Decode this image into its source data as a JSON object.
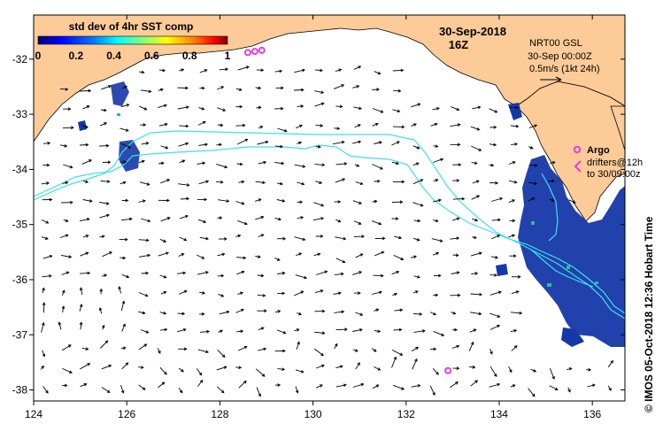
{
  "map": {
    "date": "30-Sep-2018",
    "hour": "16Z",
    "colorbar": {
      "title": "std dev of 4hr SST comp",
      "ticks": [
        "0",
        "0.2",
        "0.4",
        "0.6",
        "0.8",
        "1"
      ],
      "colors": [
        "#00007f",
        "#0000ff",
        "#0080ff",
        "#00ffff",
        "#80ff80",
        "#ffff00",
        "#ff8000",
        "#ff0000",
        "#800000"
      ]
    },
    "velocity_legend": {
      "model": "NRT00 GSL",
      "time": "30-Sep 00:00Z",
      "scale": "0.5m/s (1kt 24h)"
    },
    "argo_legend": {
      "argo_label": "Argo",
      "drifters_label": "drifters@12h",
      "drifters_range": "to 30/09:00z"
    },
    "credit": "© IMOS 05-Oct-2018 12:36 Hobart Time",
    "x_axis": {
      "ticks": [
        "124",
        "126",
        "128",
        "130",
        "132",
        "134",
        "136"
      ],
      "range": [
        124,
        136.7
      ]
    },
    "y_axis": {
      "ticks": [
        "-32",
        "-33",
        "-34",
        "-35",
        "-36",
        "-37",
        "-38"
      ],
      "range": [
        -38.2,
        -31.2
      ]
    },
    "argo_floats": [
      {
        "lon": 128.6,
        "lat": -31.88
      },
      {
        "lon": 128.75,
        "lat": -31.86
      },
      {
        "lon": 128.9,
        "lat": -31.84
      },
      {
        "lon": 132.9,
        "lat": -37.65
      }
    ],
    "colors": {
      "land": "#fdcb97",
      "ocean": "#ffffff",
      "contour": "#3ce0ee",
      "sst_patch": "#1537a8",
      "argo": "#e33ce8"
    }
  }
}
